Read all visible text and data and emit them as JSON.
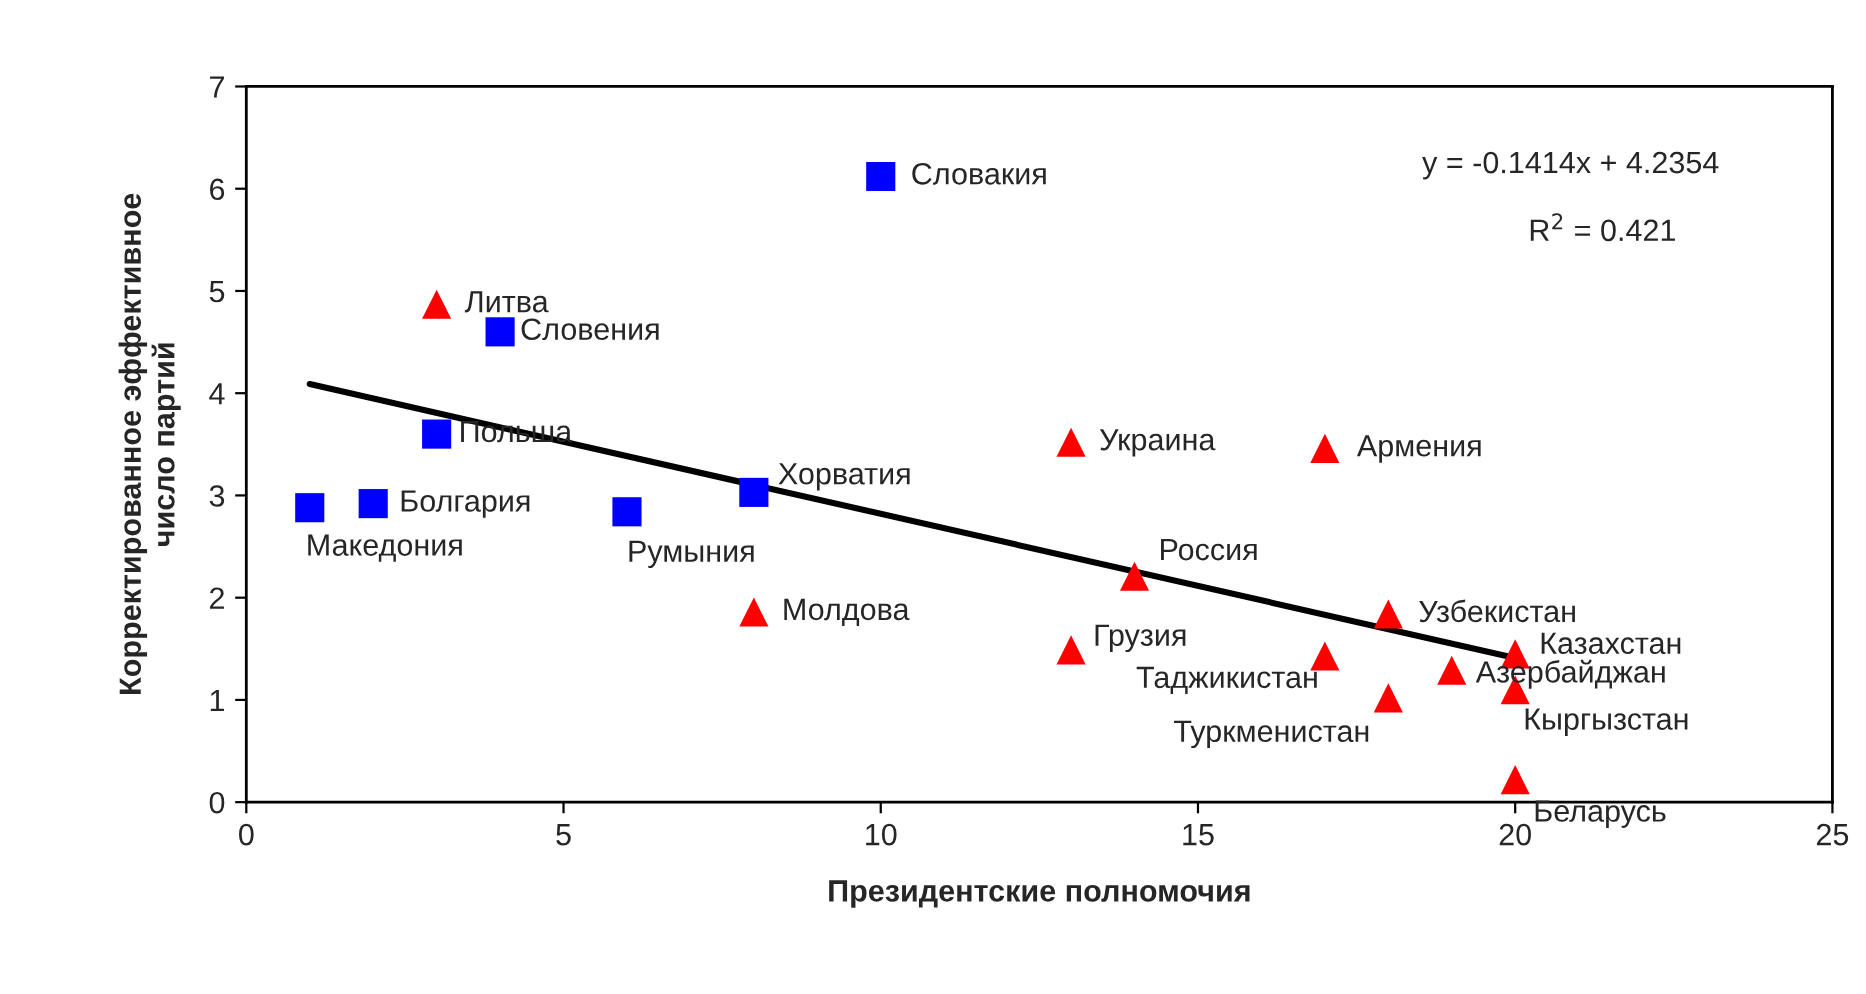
{
  "chart_data": {
    "type": "scatter",
    "xlabel": "Президентские полномочия",
    "ylabel": "Корректированное эффективное\nчисло партий",
    "xlim": [
      0,
      25
    ],
    "xticks": [
      0,
      5,
      10,
      15,
      20,
      25
    ],
    "ylim": [
      0,
      7
    ],
    "yticks": [
      0,
      1,
      2,
      3,
      4,
      5,
      6,
      7
    ],
    "grid": false,
    "legend": false,
    "series": [
      {
        "color": "#0000ff",
        "marker": "square",
        "x": [
          1,
          2,
          3,
          4,
          6,
          8,
          10
        ],
        "values": [
          2.88,
          2.92,
          3.6,
          4.6,
          2.84,
          3.03,
          6.12
        ]
      },
      {
        "color": "#ff0000",
        "marker": "triangle",
        "x": [
          3,
          8,
          13,
          13,
          14,
          17,
          17,
          18,
          18,
          19,
          20,
          20,
          20
        ],
        "values": [
          4.87,
          1.86,
          1.49,
          3.52,
          2.21,
          3.46,
          1.43,
          1.02,
          1.84,
          1.29,
          1.45,
          1.1,
          0.22
        ]
      },
      {
        "type": "line",
        "color": "#000000",
        "marker": "none",
        "line_style": "solid",
        "x": [
          1,
          20
        ],
        "values": [
          4.09,
          1.41
        ]
      }
    ],
    "annotations": [
      {
        "text": "Македония",
        "x": 1,
        "y": 2.88
      },
      {
        "text": "Болгария",
        "x": 2,
        "y": 2.92
      },
      {
        "text": "Польша",
        "x": 3,
        "y": 3.6
      },
      {
        "text": "Словения",
        "x": 4,
        "y": 4.6
      },
      {
        "text": "Румыния",
        "x": 6,
        "y": 2.84
      },
      {
        "text": "Хорватия",
        "x": 8,
        "y": 3.03
      },
      {
        "text": "Словакия",
        "x": 10,
        "y": 6.12
      },
      {
        "text": "Литва",
        "x": 3,
        "y": 4.87
      },
      {
        "text": "Молдова",
        "x": 8,
        "y": 1.86
      },
      {
        "text": "Грузия",
        "x": 13,
        "y": 1.49
      },
      {
        "text": "Украина",
        "x": 13,
        "y": 3.52
      },
      {
        "text": "Россия",
        "x": 14,
        "y": 2.21
      },
      {
        "text": "Армения",
        "x": 17,
        "y": 3.46
      },
      {
        "text": "Таджикистан",
        "x": 17,
        "y": 1.43
      },
      {
        "text": "Туркменистан",
        "x": 18,
        "y": 1.02
      },
      {
        "text": "Узбекистан",
        "x": 18,
        "y": 1.84
      },
      {
        "text": "Азербайджан",
        "x": 19,
        "y": 1.29
      },
      {
        "text": "Казахстан",
        "x": 20,
        "y": 1.45
      },
      {
        "text": "Кыргызстан",
        "x": 20,
        "y": 1.1
      },
      {
        "text": "Беларусь",
        "x": 20,
        "y": 0.22
      },
      "y = -0.1414x + 4.2354",
      "R$^{2}$ = 0.421"
    ]
  }
}
